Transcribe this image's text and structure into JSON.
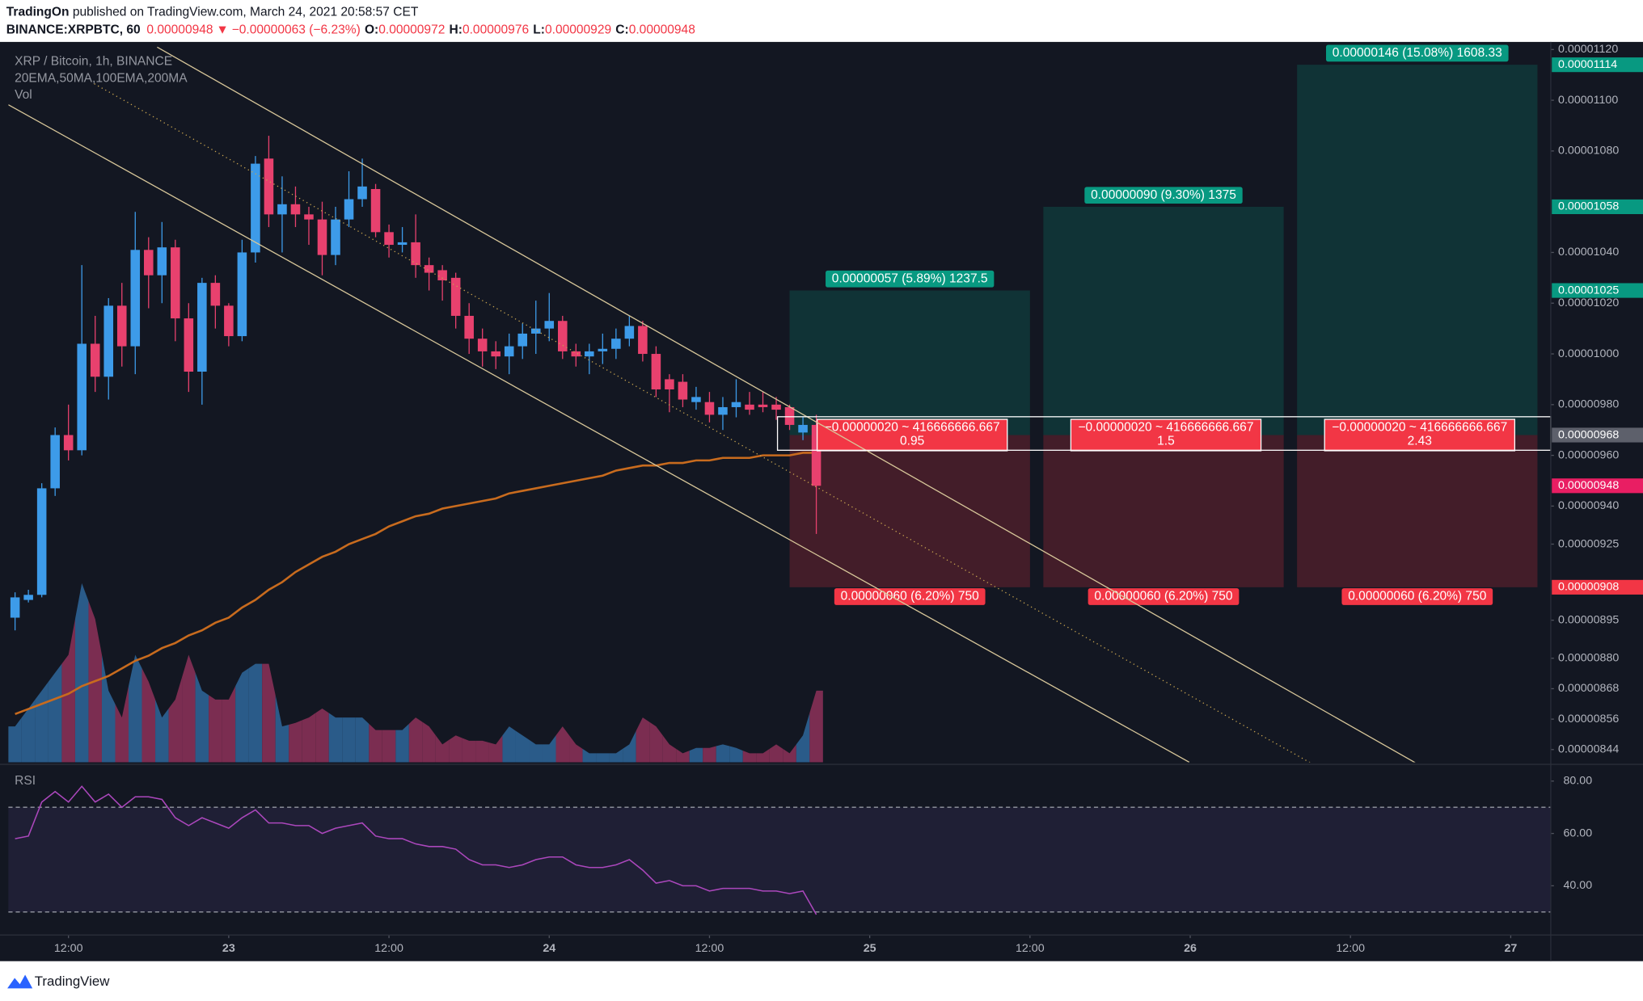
{
  "header": {
    "author": "TradingOn",
    "published": " published on TradingView.com, March 24, 2021 20:58:57 CET",
    "symbol": "BINANCE:XRPBTC, 60",
    "last": "0.00000948",
    "arrow": "▼",
    "change": "−0.00000063 (−6.23%)",
    "o_label": "O:",
    "o": "0.00000972",
    "h_label": "H:",
    "h": "0.00000976",
    "l_label": "L:",
    "l": "0.00000929",
    "c_label": "C:",
    "c": "0.00000948"
  },
  "footer": {
    "brand": "TradingView"
  },
  "chart_data": {
    "type": "candlestick",
    "title": "XRP / Bitcoin, 1h, BINANCE",
    "indicators": "20EMA,50MA,100EMA,200MA",
    "volume_label": "Vol",
    "up_color": "#3d9be9",
    "down_color": "#e8416e",
    "volume_up_color": "#2a5b89",
    "volume_down_color": "#7b2d51",
    "open": [
      8.96e-06,
      9.03e-06,
      9.05e-06,
      9.47e-06,
      9.68e-06,
      9.62e-06,
      1.004e-05,
      9.91e-06,
      1.019e-05,
      1.003e-05,
      1.041e-05,
      1.031e-05,
      1.042e-05,
      1.014e-05,
      9.93e-06,
      1.028e-05,
      1.019e-05,
      1.007e-05,
      1.04e-05,
      1.077e-05,
      1.055e-05,
      1.059e-05,
      1.055e-05,
      1.053e-05,
      1.039e-05,
      1.053e-05,
      1.061e-05,
      1.065e-05,
      1.048e-05,
      1.043e-05,
      1.044e-05,
      1.035e-05,
      1.033e-05,
      1.03e-05,
      1.015e-05,
      1.006e-05,
      1.001e-05,
      9.99e-06,
      1.003e-05,
      1.008e-05,
      1.01e-05,
      1.013e-05,
      1.001e-05,
      9.99e-06,
      1.001e-05,
      1.002e-05,
      1.006e-05,
      1.011e-05,
      1e-05,
      9.9e-06,
      9.89e-06,
      9.81e-06,
      9.81e-06,
      9.76e-06,
      9.79e-06,
      9.8e-06,
      9.8e-06,
      9.8e-06,
      9.79e-06,
      9.69e-06,
      9.72e-06
    ],
    "high": [
      9.06e-06,
      9.07e-06,
      9.49e-06,
      9.71e-06,
      9.8e-06,
      1.035e-05,
      1.015e-05,
      1.022e-05,
      1.028e-05,
      1.056e-05,
      1.046e-05,
      1.052e-05,
      1.045e-05,
      1.02e-05,
      1.03e-05,
      1.031e-05,
      1.02e-05,
      1.045e-05,
      1.078e-05,
      1.086e-05,
      1.07e-05,
      1.066e-05,
      1.058e-05,
      1.06e-05,
      1.058e-05,
      1.072e-05,
      1.077e-05,
      1.067e-05,
      1.051e-05,
      1.05e-05,
      1.055e-05,
      1.038e-05,
      1.035e-05,
      1.032e-05,
      1.02e-05,
      1.01e-05,
      1.005e-05,
      1.008e-05,
      1.012e-05,
      1.021e-05,
      1.024e-05,
      1.015e-05,
      1.004e-05,
      1.004e-05,
      1.008e-05,
      1.01e-05,
      1.015e-05,
      1.013e-05,
      1.003e-05,
      9.92e-06,
      9.92e-06,
      9.87e-06,
      9.85e-06,
      9.83e-06,
      9.9e-06,
      9.85e-06,
      9.85e-06,
      9.83e-06,
      9.8e-06,
      9.75e-06,
      9.76e-06
    ],
    "low": [
      8.91e-06,
      9.02e-06,
      9.04e-06,
      9.44e-06,
      9.58e-06,
      9.6e-06,
      9.85e-06,
      9.82e-06,
      9.95e-06,
      9.92e-06,
      1.018e-05,
      1.02e-05,
      1.005e-05,
      9.85e-06,
      9.8e-06,
      1.01e-05,
      1.003e-05,
      1.005e-05,
      1.036e-05,
      1.05e-05,
      1.04e-05,
      1.05e-05,
      1.043e-05,
      1.031e-05,
      1.035e-05,
      1.05e-05,
      1.058e-05,
      1.046e-05,
      1.038e-05,
      1.04e-05,
      1.03e-05,
      1.025e-05,
      1.021e-05,
      1.01e-05,
      1e-05,
      9.95e-06,
      9.94e-06,
      9.92e-06,
      9.98e-06,
      1e-05,
      1.005e-05,
      9.98e-06,
      9.95e-06,
      9.92e-06,
      9.96e-06,
      9.98e-06,
      1.003e-05,
      9.97e-06,
      9.83e-06,
      9.77e-06,
      9.79e-06,
      9.78e-06,
      9.73e-06,
      9.7e-06,
      9.75e-06,
      9.76e-06,
      9.77e-06,
      9.74e-06,
      9.7e-06,
      9.66e-06,
      9.29e-06
    ],
    "close": [
      9.04e-06,
      9.05e-06,
      9.47e-06,
      9.68e-06,
      9.62e-06,
      1.004e-05,
      9.91e-06,
      1.019e-05,
      1.003e-05,
      1.041e-05,
      1.031e-05,
      1.042e-05,
      1.014e-05,
      9.93e-06,
      1.028e-05,
      1.019e-05,
      1.007e-05,
      1.04e-05,
      1.075e-05,
      1.055e-05,
      1.059e-05,
      1.055e-05,
      1.053e-05,
      1.039e-05,
      1.053e-05,
      1.061e-05,
      1.066e-05,
      1.048e-05,
      1.043e-05,
      1.044e-05,
      1.035e-05,
      1.032e-05,
      1.029e-05,
      1.015e-05,
      1.006e-05,
      1.001e-05,
      9.99e-06,
      1.003e-05,
      1.008e-05,
      1.01e-05,
      1.013e-05,
      1.001e-05,
      9.99e-06,
      1.001e-05,
      1.002e-05,
      1.006e-05,
      1.011e-05,
      1e-05,
      9.86e-06,
      9.86e-06,
      9.82e-06,
      9.83e-06,
      9.76e-06,
      9.79e-06,
      9.81e-06,
      9.78e-06,
      9.79e-06,
      9.78e-06,
      9.72e-06,
      9.72e-06,
      9.48e-06
    ],
    "volume": [
      20,
      30,
      40,
      50,
      60,
      100,
      80,
      40,
      25,
      60,
      45,
      25,
      35,
      60,
      40,
      35,
      35,
      50,
      55,
      55,
      20,
      22,
      25,
      30,
      25,
      25,
      25,
      18,
      18,
      18,
      25,
      20,
      10,
      15,
      12,
      12,
      10,
      20,
      15,
      10,
      10,
      20,
      10,
      5,
      5,
      5,
      10,
      25,
      20,
      10,
      5,
      8,
      8,
      10,
      8,
      5,
      5,
      10,
      5,
      15,
      40
    ],
    "volume_ylim": [
      0,
      100
    ],
    "ma": {
      "color": "#c86b1e",
      "values": [
        8.58e-06,
        8.6e-06,
        8.62e-06,
        8.64e-06,
        8.66e-06,
        8.69e-06,
        8.71e-06,
        8.73e-06,
        8.76e-06,
        8.79e-06,
        8.81e-06,
        8.84e-06,
        8.86e-06,
        8.89e-06,
        8.91e-06,
        8.94e-06,
        8.96e-06,
        9e-06,
        9.03e-06,
        9.07e-06,
        9.1e-06,
        9.14e-06,
        9.17e-06,
        9.2e-06,
        9.22e-06,
        9.25e-06,
        9.27e-06,
        9.29e-06,
        9.32e-06,
        9.34e-06,
        9.36e-06,
        9.37e-06,
        9.39e-06,
        9.4e-06,
        9.41e-06,
        9.42e-06,
        9.43e-06,
        9.45e-06,
        9.46e-06,
        9.47e-06,
        9.48e-06,
        9.49e-06,
        9.5e-06,
        9.51e-06,
        9.52e-06,
        9.54e-06,
        9.55e-06,
        9.56e-06,
        9.56e-06,
        9.57e-06,
        9.57e-06,
        9.58e-06,
        9.58e-06,
        9.59e-06,
        9.59e-06,
        9.59e-06,
        9.6e-06,
        9.6e-06,
        9.6e-06,
        9.61e-06,
        9.61e-06
      ]
    },
    "last_price": {
      "value": 9.48e-06,
      "label": "0.00000948"
    },
    "xlim": [
      -0.5,
      115
    ],
    "xticks": [
      {
        "value": 4,
        "label": "12:00"
      },
      {
        "value": 16,
        "label": "23"
      },
      {
        "value": 28,
        "label": "12:00"
      },
      {
        "value": 40,
        "label": "24"
      },
      {
        "value": 52,
        "label": "12:00"
      },
      {
        "value": 64,
        "label": "25"
      },
      {
        "value": 76,
        "label": "12:00"
      },
      {
        "value": 88,
        "label": "26"
      },
      {
        "value": 100,
        "label": "12:00"
      },
      {
        "value": 112,
        "label": "27"
      }
    ],
    "ylim": [
      8.39e-06,
      1.123e-05
    ],
    "yticks": [
      {
        "value": 1.12e-05,
        "label": "0.00001120"
      },
      {
        "value": 1.1e-05,
        "label": "0.00001100"
      },
      {
        "value": 1.08e-05,
        "label": "0.00001080"
      },
      {
        "value": 1.04e-05,
        "label": "0.00001040"
      },
      {
        "value": 1.02e-05,
        "label": "0.00001020"
      },
      {
        "value": 1e-05,
        "label": "0.00001000"
      },
      {
        "value": 9.8e-06,
        "label": "0.00000980"
      },
      {
        "value": 9.6e-06,
        "label": "0.00000960"
      },
      {
        "value": 9.4e-06,
        "label": "0.00000940"
      },
      {
        "value": 9.25e-06,
        "label": "0.00000925"
      },
      {
        "value": 8.95e-06,
        "label": "0.00000895"
      },
      {
        "value": 8.8e-06,
        "label": "0.00000880"
      },
      {
        "value": 8.68e-06,
        "label": "0.00000868"
      },
      {
        "value": 8.56e-06,
        "label": "0.00000856"
      },
      {
        "value": 8.44e-06,
        "label": "0.00000844"
      }
    ],
    "grid": false,
    "positions": [
      {
        "x_range": [
          58,
          76
        ],
        "entry": {
          "value": 9.68e-06,
          "label": "0.00000968"
        },
        "target": {
          "value": 1.025e-05,
          "label": "0.00001025"
        },
        "stop": {
          "value": 9.08e-06,
          "label": "0.00000908"
        },
        "target_text": "0.00000057 (5.89%) 1237.5",
        "risk_text": "−0.00000020 ~ 416666666.667",
        "ratio": 0.95,
        "stop_text": "0.00000060 (6.20%) 750"
      },
      {
        "x_range": [
          77,
          95
        ],
        "entry": {
          "value": 9.68e-06,
          "label": "0.00000968"
        },
        "target": {
          "value": 1.058e-05,
          "label": "0.00001058"
        },
        "stop": {
          "value": 9.08e-06,
          "label": "0.00000908"
        },
        "target_text": "0.00000090 (9.30%) 1375",
        "risk_text": "−0.00000020 ~ 416666666.667",
        "ratio": 1.5,
        "stop_text": "0.00000060 (6.20%) 750"
      },
      {
        "x_range": [
          96,
          114
        ],
        "entry": {
          "value": 9.68e-06,
          "label": "0.00000968"
        },
        "target": {
          "value": 1.114e-05,
          "label": "0.00001114"
        },
        "stop": {
          "value": 9.08e-06,
          "label": "0.00000908"
        },
        "target_text": "0.00000146 (15.08%) 1608.33",
        "risk_text": "−0.00000020 ~ 416666666.667",
        "ratio": 2.43,
        "stop_text": "0.00000060 (6.20%) 750"
      }
    ],
    "rsi": {
      "label": "RSI",
      "color": "#ab47bc",
      "values": [
        58,
        59,
        72,
        76,
        72,
        78,
        72,
        75,
        70,
        74,
        74,
        73,
        66,
        63,
        66,
        64,
        62,
        66,
        69,
        64,
        64,
        63,
        63,
        60,
        62,
        63,
        64,
        59,
        58,
        58,
        56,
        55,
        55,
        54,
        50,
        48,
        48,
        47,
        48,
        50,
        51,
        51,
        48,
        47,
        47,
        48,
        50,
        46,
        41,
        42,
        40,
        40,
        38,
        39,
        39,
        39,
        38,
        38,
        37,
        38,
        29
      ],
      "ylim": [
        21.6,
        85.6
      ],
      "yticks": [
        {
          "value": 80,
          "label": "80.00"
        },
        {
          "value": 60,
          "label": "60.00"
        },
        {
          "value": 40,
          "label": "40.00"
        }
      ],
      "bands": [
        30,
        70
      ]
    }
  }
}
